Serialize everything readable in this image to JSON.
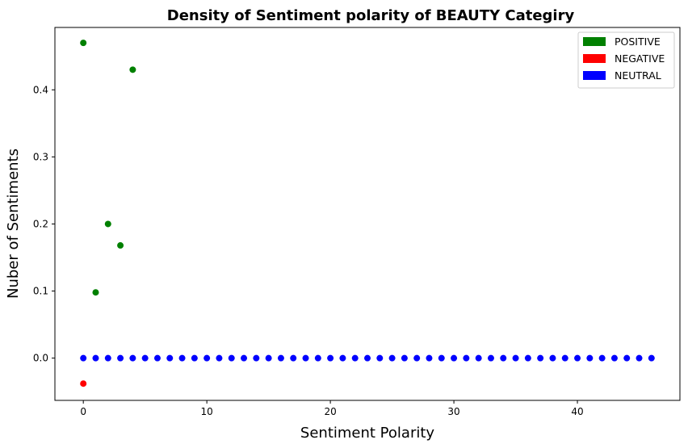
{
  "chart_data": {
    "type": "scatter",
    "title": "Density of Sentiment polarity of BEAUTY Categiry",
    "xlabel": "Sentiment Polarity",
    "ylabel": "Nuber of Sentiments",
    "xlim": [
      -2.3,
      48.3
    ],
    "ylim": [
      -0.063,
      0.493
    ],
    "xticks": [
      0,
      10,
      20,
      30,
      40
    ],
    "yticks": [
      0.0,
      0.1,
      0.2,
      0.3,
      0.4
    ],
    "xtick_labels": [
      "0",
      "10",
      "20",
      "30",
      "40"
    ],
    "ytick_labels": [
      "0.0",
      "0.1",
      "0.2",
      "0.3",
      "0.4"
    ],
    "grid": false,
    "legend_position": "top-right",
    "series": [
      {
        "name": "POSITIVE",
        "color": "#008000",
        "x": [
          0,
          1,
          2,
          3,
          4
        ],
        "y": [
          0.47,
          0.098,
          0.2,
          0.168,
          0.43
        ]
      },
      {
        "name": "NEGATIVE",
        "color": "#ff0000",
        "x": [
          0
        ],
        "y": [
          -0.038
        ]
      },
      {
        "name": "NEUTRAL",
        "color": "#0000ff",
        "x": [
          0,
          1,
          2,
          3,
          4,
          5,
          6,
          7,
          8,
          9,
          10,
          11,
          12,
          13,
          14,
          15,
          16,
          17,
          18,
          19,
          20,
          21,
          22,
          23,
          24,
          25,
          26,
          27,
          28,
          29,
          30,
          31,
          32,
          33,
          34,
          35,
          36,
          37,
          38,
          39,
          40,
          41,
          42,
          43,
          44,
          45,
          46
        ],
        "y": [
          0,
          0,
          0,
          0,
          0,
          0,
          0,
          0,
          0,
          0,
          0,
          0,
          0,
          0,
          0,
          0,
          0,
          0,
          0,
          0,
          0,
          0,
          0,
          0,
          0,
          0,
          0,
          0,
          0,
          0,
          0,
          0,
          0,
          0,
          0,
          0,
          0,
          0,
          0,
          0,
          0,
          0,
          0,
          0,
          0,
          0,
          0
        ]
      }
    ]
  }
}
